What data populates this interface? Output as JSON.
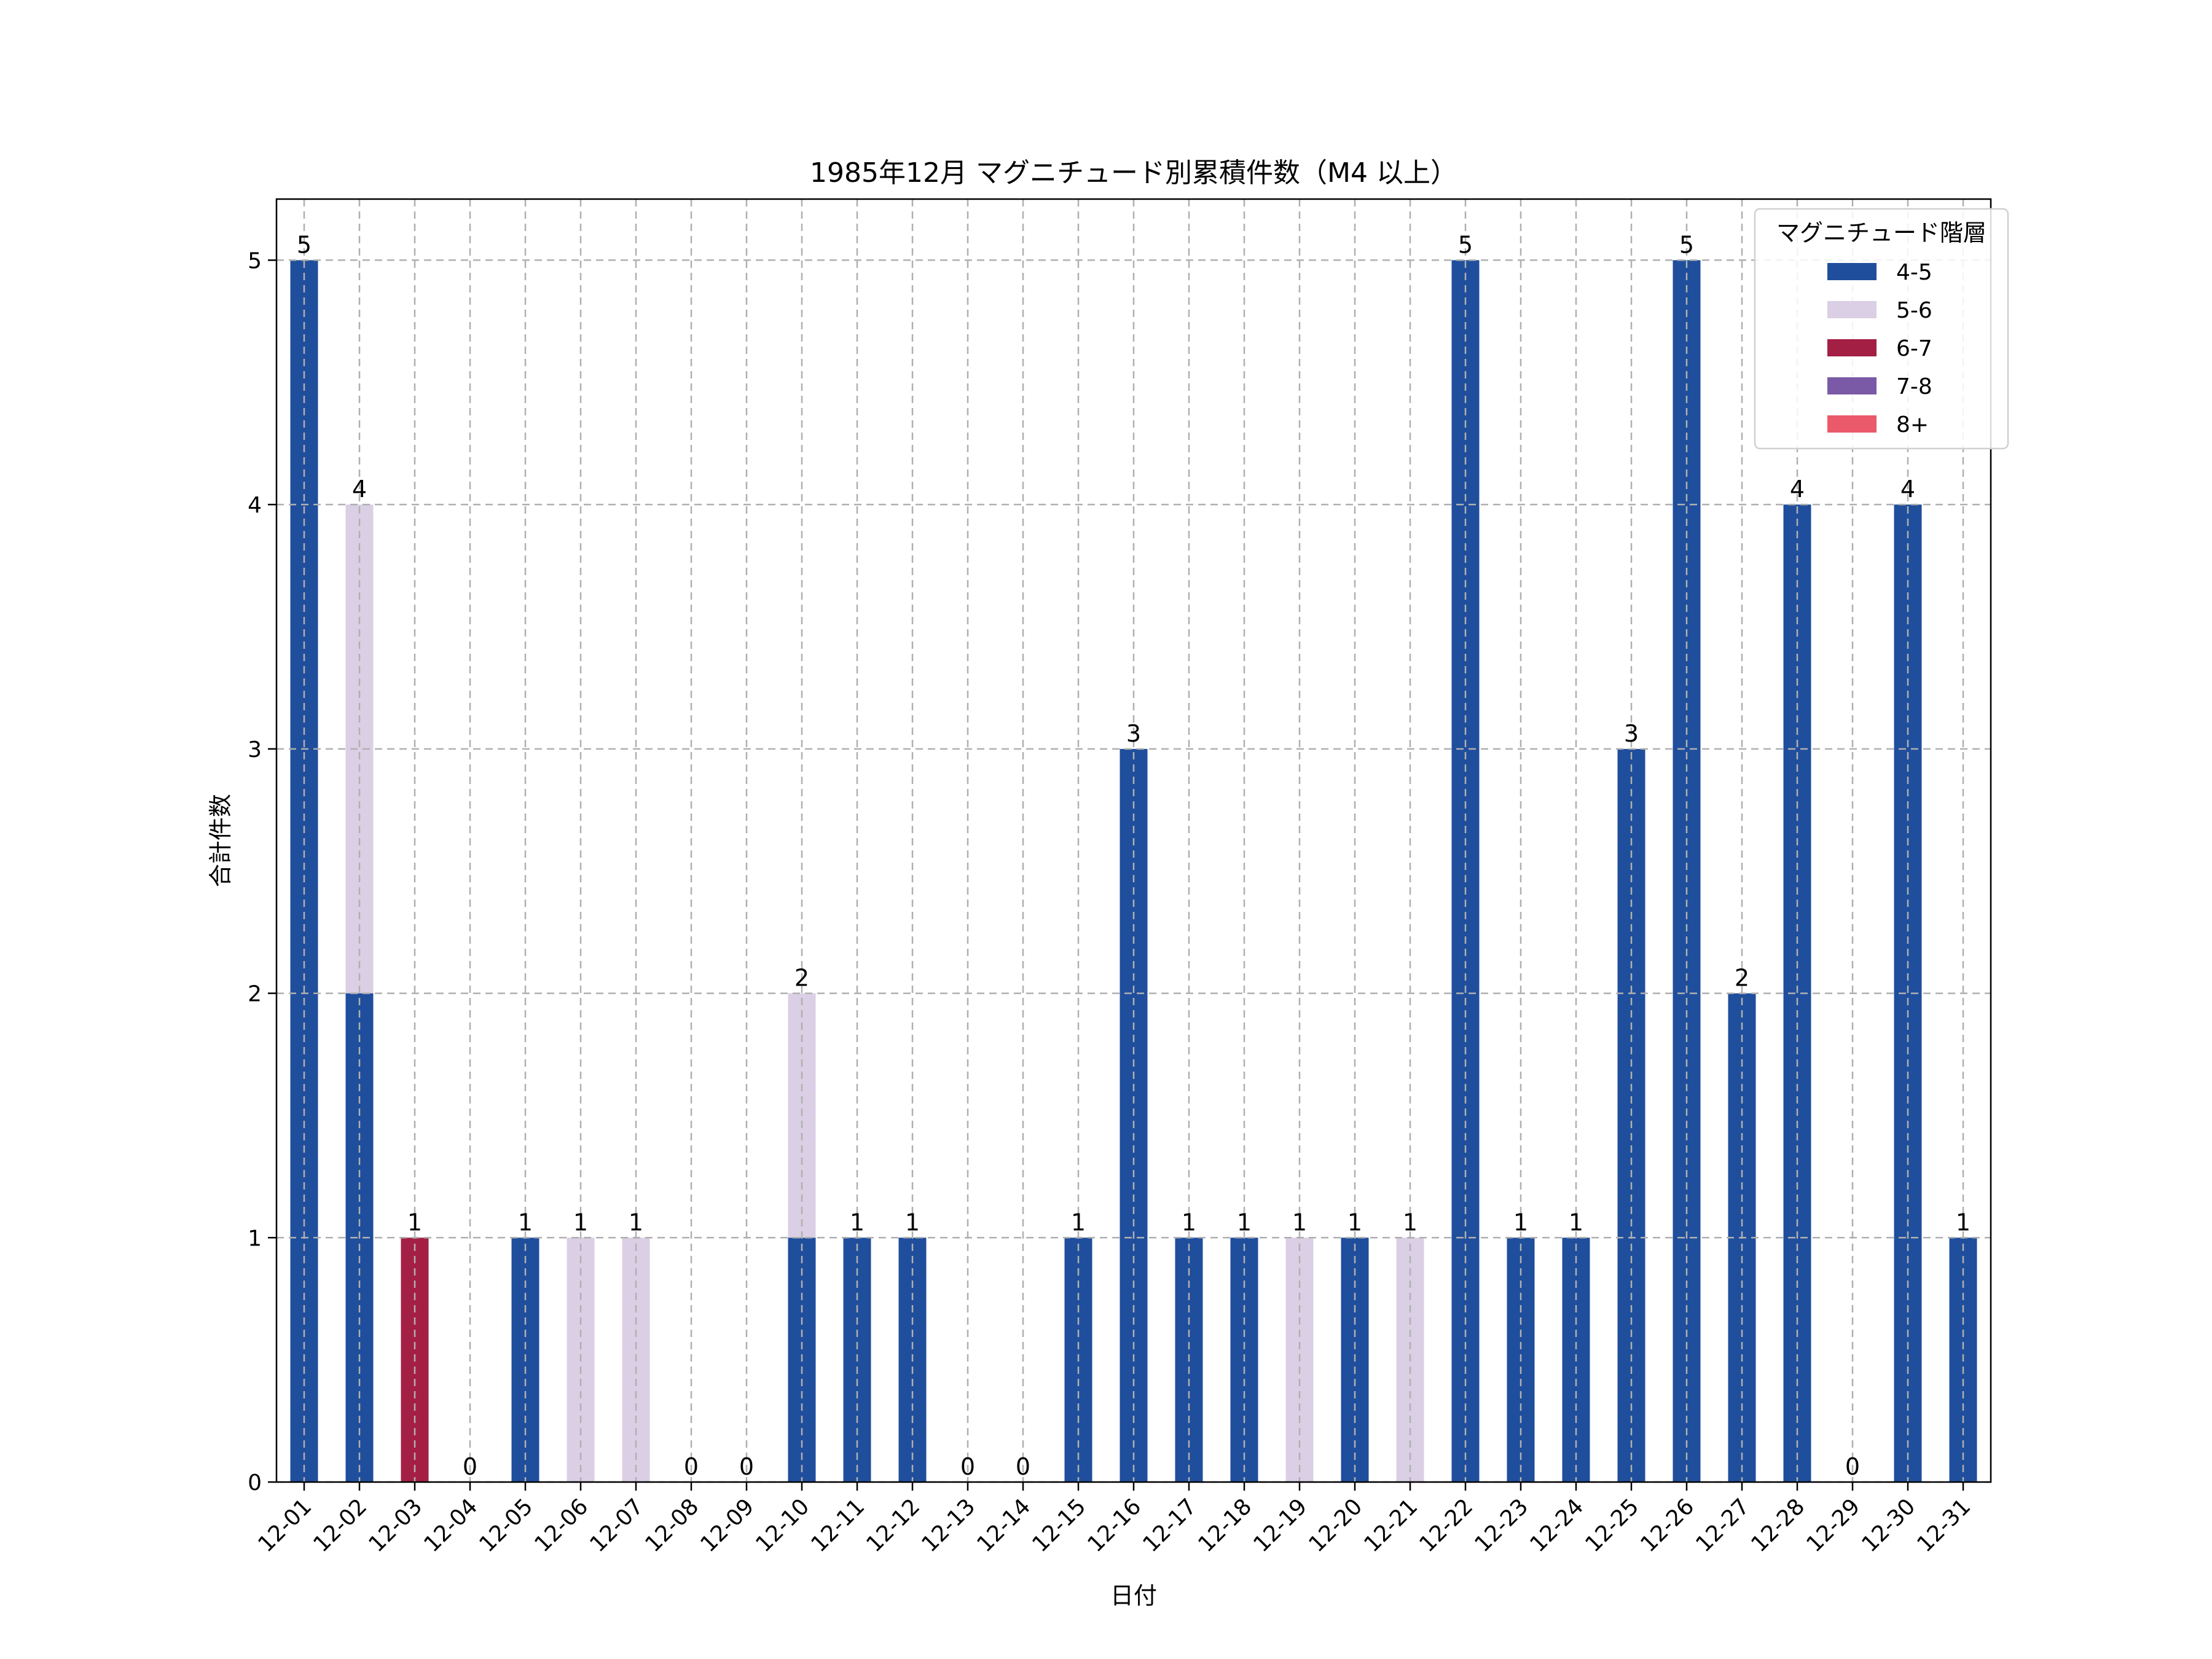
{
  "chart_data": {
    "type": "bar",
    "stacked": true,
    "title": "1985年12月 マグニチュード別累積件数（M4 以上）",
    "xlabel": "日付",
    "ylabel": "合計件数",
    "ylim": [
      0,
      5.25
    ],
    "yticks": [
      0,
      1,
      2,
      3,
      4,
      5
    ],
    "grid": true,
    "legend_title": "マグニチュード階層",
    "legend_position": "top-right",
    "categories": [
      "12-01",
      "12-02",
      "12-03",
      "12-04",
      "12-05",
      "12-06",
      "12-07",
      "12-08",
      "12-09",
      "12-10",
      "12-11",
      "12-12",
      "12-13",
      "12-14",
      "12-15",
      "12-16",
      "12-17",
      "12-18",
      "12-19",
      "12-20",
      "12-21",
      "12-22",
      "12-23",
      "12-24",
      "12-25",
      "12-26",
      "12-27",
      "12-28",
      "12-29",
      "12-30",
      "12-31"
    ],
    "series": [
      {
        "name": "4-5",
        "color": "#1f4e9c",
        "values": [
          5,
          2,
          0,
          0,
          1,
          0,
          0,
          0,
          0,
          1,
          1,
          1,
          0,
          0,
          1,
          3,
          1,
          1,
          0,
          1,
          0,
          5,
          1,
          1,
          3,
          5,
          2,
          4,
          0,
          4,
          1
        ]
      },
      {
        "name": "5-6",
        "color": "#dacfe4",
        "values": [
          0,
          2,
          0,
          0,
          0,
          1,
          1,
          0,
          0,
          1,
          0,
          0,
          0,
          0,
          0,
          0,
          0,
          0,
          1,
          0,
          1,
          0,
          0,
          0,
          0,
          0,
          0,
          0,
          0,
          0,
          0
        ]
      },
      {
        "name": "6-7",
        "color": "#a31f44",
        "values": [
          0,
          0,
          1,
          0,
          0,
          0,
          0,
          0,
          0,
          0,
          0,
          0,
          0,
          0,
          0,
          0,
          0,
          0,
          0,
          0,
          0,
          0,
          0,
          0,
          0,
          0,
          0,
          0,
          0,
          0,
          0
        ]
      },
      {
        "name": "7-8",
        "color": "#7a5aa6",
        "values": [
          0,
          0,
          0,
          0,
          0,
          0,
          0,
          0,
          0,
          0,
          0,
          0,
          0,
          0,
          0,
          0,
          0,
          0,
          0,
          0,
          0,
          0,
          0,
          0,
          0,
          0,
          0,
          0,
          0,
          0,
          0
        ]
      },
      {
        "name": "8+",
        "color": "#eb5a6a",
        "values": [
          0,
          0,
          0,
          0,
          0,
          0,
          0,
          0,
          0,
          0,
          0,
          0,
          0,
          0,
          0,
          0,
          0,
          0,
          0,
          0,
          0,
          0,
          0,
          0,
          0,
          0,
          0,
          0,
          0,
          0,
          0
        ]
      }
    ],
    "totals": [
      5,
      4,
      1,
      0,
      1,
      1,
      1,
      0,
      0,
      2,
      1,
      1,
      0,
      0,
      1,
      3,
      1,
      1,
      1,
      1,
      1,
      5,
      1,
      1,
      3,
      5,
      2,
      4,
      0,
      4,
      1
    ]
  }
}
